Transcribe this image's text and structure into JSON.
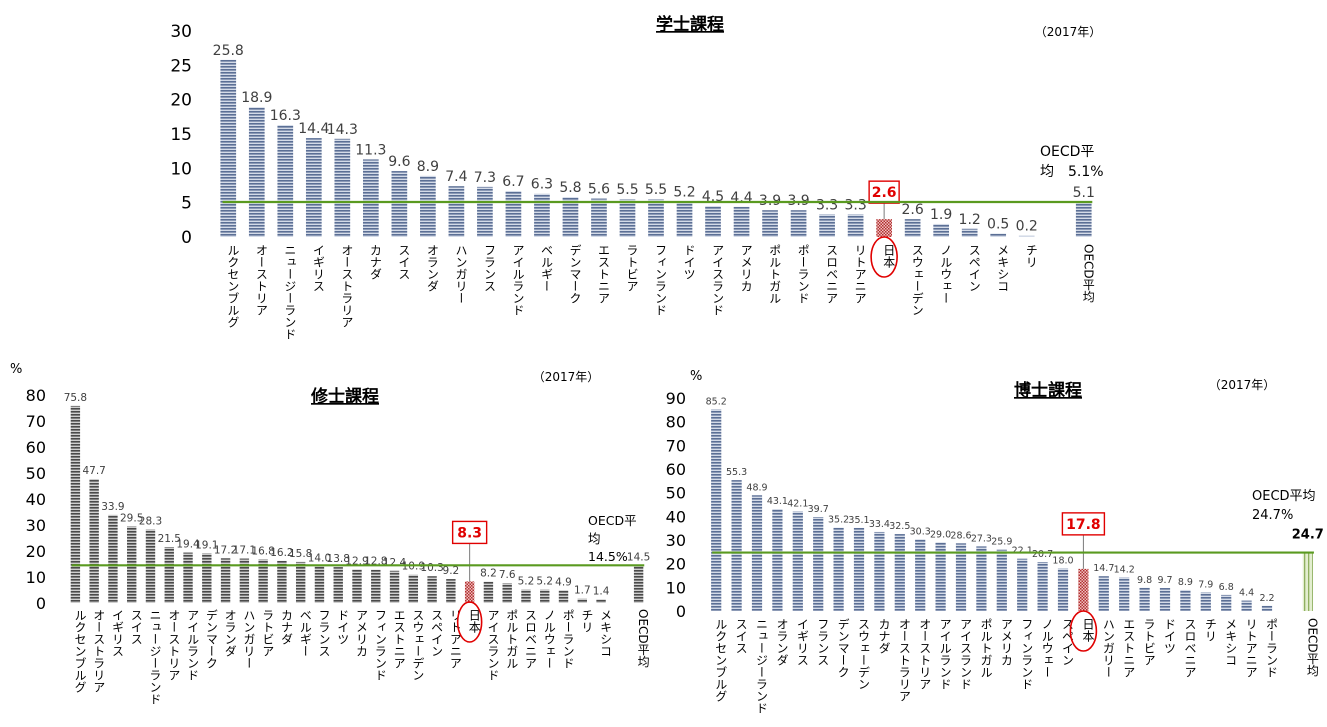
{
  "chart_data": [
    {
      "type": "bar",
      "title": "学士課程",
      "year_note": "（2017年）",
      "unit": "",
      "ylim": [
        0,
        30
      ],
      "yticks": [
        0,
        5,
        10,
        15,
        20,
        25,
        30
      ],
      "categories": [
        "ルクセンブルグ",
        "オーストリア",
        "ニュージーランド",
        "イギリス",
        "オーストラリア",
        "カナダ",
        "スイス",
        "オランダ",
        "ハンガリー",
        "フランス",
        "アイルランド",
        "ベルギー",
        "デンマーク",
        "エストニア",
        "ラトビア",
        "フィンランド",
        "ドイツ",
        "アイスランド",
        "アメリカ",
        "ポルトガル",
        "ポーランド",
        "スロベニア",
        "リトアニア",
        "日本",
        "スウェーデン",
        "ノルウェー",
        "スペイン",
        "メキシコ",
        "チリ",
        "",
        "OECD平均"
      ],
      "values": [
        25.8,
        18.9,
        16.3,
        14.4,
        14.3,
        11.3,
        9.6,
        8.9,
        7.4,
        7.3,
        6.7,
        6.3,
        5.8,
        5.6,
        5.5,
        5.5,
        5.2,
        4.5,
        4.4,
        3.9,
        3.9,
        3.3,
        3.3,
        2.6,
        2.6,
        1.9,
        1.2,
        0.5,
        0.2,
        null,
        5.1
      ],
      "labels": [
        "25.8",
        "18.9",
        "16.3",
        "14.4",
        "14.3",
        "11.3",
        "9.6",
        "8.9",
        "7.4",
        "7.3",
        "6.7",
        "6.3",
        "5.8",
        "5.6",
        "5.5",
        "5.5",
        "5.2",
        "4.5",
        "4.4",
        "3.9",
        "3.9",
        "3.3",
        "3.3",
        "",
        "2.6",
        "1.9",
        "1.2",
        "0.5",
        "0.2",
        "",
        "5.1"
      ],
      "highlight": "日本",
      "highlight_label": "2.6",
      "oecd_average": 5.1,
      "oecd_text": [
        "OECD平",
        "均　5.1%"
      ],
      "colors": {
        "bar": "#7f93b5",
        "japan": "#c05050",
        "oecd_line": "#5a9a20",
        "highlight": "#e00000"
      }
    },
    {
      "type": "bar",
      "title": "修士課程",
      "year_note": "（2017年）",
      "unit": "%",
      "ylim": [
        0,
        80
      ],
      "yticks": [
        0,
        10,
        20,
        30,
        40,
        50,
        60,
        70,
        80
      ],
      "categories": [
        "ルクセンブルグ",
        "オーストラリア",
        "イギリス",
        "スイス",
        "ニュージーランド",
        "オーストリア",
        "アイルランド",
        "デンマーク",
        "オランダ",
        "ハンガリー",
        "ラトビア",
        "カナダ",
        "ベルギー",
        "フランス",
        "ドイツ",
        "アメリカ",
        "フィンランド",
        "エストニア",
        "スウェーデン",
        "スペイン",
        "リトアニア",
        "日本",
        "アイスランド",
        "ポルトガル",
        "スロベニア",
        "ノルウェー",
        "ポーランド",
        "チリ",
        "メキシコ",
        "",
        "OECD平均"
      ],
      "values": [
        75.8,
        47.7,
        33.9,
        29.5,
        28.3,
        21.5,
        19.4,
        19.1,
        17.2,
        17.1,
        16.8,
        16.2,
        15.8,
        14.0,
        13.8,
        12.9,
        12.8,
        12.4,
        10.9,
        10.3,
        9.2,
        8.3,
        8.2,
        7.6,
        5.2,
        5.2,
        4.9,
        1.7,
        1.4,
        null,
        14.5
      ],
      "labels": [
        "75.8",
        "47.7",
        "33.9",
        "29.5",
        "28.3",
        "21.5",
        "19.4",
        "19.1",
        "17.2",
        "17.1",
        "16.8",
        "16.2",
        "15.8",
        "14.0",
        "13.8",
        "12.9",
        "12.8",
        "12.4",
        "10.9",
        "10.3",
        "9.2",
        "",
        "8.2",
        "7.6",
        "5.2",
        "5.2",
        "4.9",
        "1.7",
        "1.4",
        "",
        "14.5"
      ],
      "highlight": "日本",
      "highlight_label": "8.3",
      "oecd_average": 14.5,
      "oecd_text": [
        "OECD平",
        "均",
        "14.5%"
      ],
      "colors": {
        "bar": "#707070",
        "japan": "#c05050",
        "oecd_line": "#5a9a20",
        "highlight": "#e00000"
      }
    },
    {
      "type": "bar",
      "title": "博士課程",
      "year_note": "（2017年）",
      "unit": "%",
      "ylim": [
        0,
        90
      ],
      "yticks": [
        0,
        10,
        20,
        30,
        40,
        50,
        60,
        70,
        80,
        90
      ],
      "categories": [
        "ルクセンブルグ",
        "スイス",
        "ニュージーランド",
        "オランダ",
        "イギリス",
        "フランス",
        "デンマーク",
        "スウェーデン",
        "カナダ",
        "オーストラリア",
        "オーストリア",
        "アイルランド",
        "アイスランド",
        "ポルトガル",
        "アメリカ",
        "フィンランド",
        "ノルウェー",
        "スペイン",
        "日本",
        "ハンガリー",
        "エストニア",
        "ラトビア",
        "ドイツ",
        "スロベニア",
        "チリ",
        "メキシコ",
        "リトアニア",
        "ポーランド",
        "",
        "OECD平均"
      ],
      "values": [
        85.2,
        55.3,
        48.9,
        43.1,
        42.1,
        39.7,
        35.2,
        35.1,
        33.4,
        32.5,
        30.3,
        29.0,
        28.6,
        27.3,
        25.9,
        22.1,
        20.7,
        18.0,
        17.8,
        14.7,
        14.2,
        9.8,
        9.7,
        8.9,
        7.9,
        6.8,
        4.4,
        2.2,
        null,
        24.7
      ],
      "labels": [
        "85.2",
        "55.3",
        "48.9",
        "43.1",
        "42.1",
        "39.7",
        "35.2",
        "35.1",
        "33.4",
        "32.5",
        "30.3",
        "29.0",
        "28.6",
        "27.3",
        "25.9",
        "22.1",
        "20.7",
        "18.0",
        "",
        "14.7",
        "14.2",
        "9.8",
        "9.7",
        "8.9",
        "7.9",
        "6.8",
        "4.4",
        "2.2",
        "",
        "24.7"
      ],
      "highlight": "日本",
      "highlight_label": "17.8",
      "oecd_average": 24.7,
      "oecd_text": [
        "OECD平均",
        "24.7%"
      ],
      "colors": {
        "bar": "#7f93b5",
        "japan": "#c05050",
        "oecd_line": "#5a9a20",
        "highlight": "#e00000",
        "oecd_bar": "#b5cf8a"
      }
    }
  ]
}
